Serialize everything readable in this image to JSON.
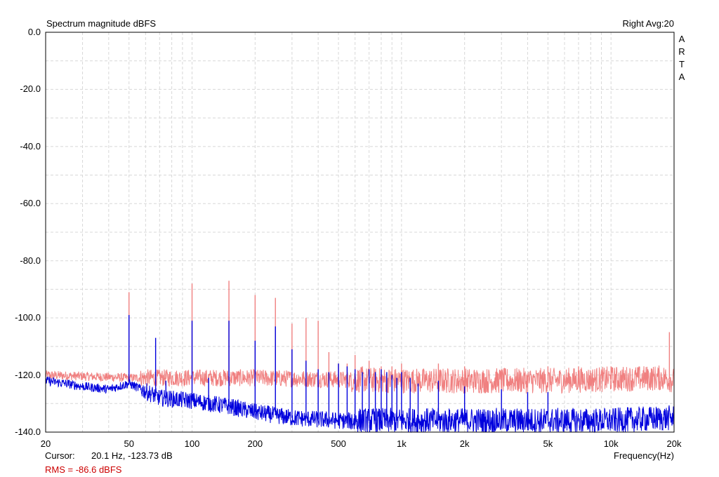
{
  "header": {
    "title": "Spectrum magnitude dBFS",
    "channel_info": "Right  Avg:20",
    "brand_letters": [
      "A",
      "R",
      "T",
      "A"
    ]
  },
  "footer": {
    "cursor_label": "Cursor:",
    "cursor_value": "20.1 Hz, -123.73 dB",
    "rms_text": "RMS =  -86.6 dBFS",
    "rms_color": "#cc0000",
    "frequency_label": "Frequency(Hz)"
  },
  "chart_data": {
    "type": "line",
    "title": "Spectrum magnitude dBFS",
    "xlabel": "Frequency(Hz)",
    "ylabel": "",
    "x_scale": "log",
    "xlim": [
      20,
      20000
    ],
    "ylim": [
      -140,
      0
    ],
    "grid": true,
    "x_tick_values": [
      20,
      50,
      100,
      200,
      500,
      1000,
      2000,
      5000,
      10000,
      20000
    ],
    "x_tick_labels": [
      "20",
      "50",
      "100",
      "200",
      "500",
      "1k",
      "2k",
      "5k",
      "10k",
      "20k"
    ],
    "y_tick_values": [
      0,
      -20,
      -40,
      -60,
      -80,
      -100,
      -120,
      -140
    ],
    "y_tick_labels": [
      "0.0",
      "-20.0",
      "-40.0",
      "-60.0",
      "-80.0",
      "-100.0",
      "-120.0",
      "-140.0"
    ],
    "series": [
      {
        "color": "#f08080",
        "noise_floor": [
          [
            20,
            -120
          ],
          [
            50,
            -121
          ],
          [
            200,
            -121
          ],
          [
            1000,
            -122
          ],
          [
            5000,
            -122
          ],
          [
            18000,
            -121
          ],
          [
            20000,
            -122
          ]
        ],
        "peaks": [
          [
            50,
            -91
          ],
          [
            100,
            -88
          ],
          [
            150,
            -87
          ],
          [
            200,
            -92
          ],
          [
            250,
            -93
          ],
          [
            300,
            -102
          ],
          [
            350,
            -100
          ],
          [
            400,
            -101
          ],
          [
            450,
            -112
          ],
          [
            500,
            -116
          ],
          [
            550,
            -116
          ],
          [
            600,
            -113
          ],
          [
            650,
            -117
          ],
          [
            700,
            -115
          ],
          [
            800,
            -117
          ],
          [
            900,
            -117
          ],
          [
            1000,
            -116
          ],
          [
            1500,
            -116
          ],
          [
            2000,
            -117
          ],
          [
            3000,
            -118
          ],
          [
            5000,
            -117
          ],
          [
            7000,
            -117
          ],
          [
            10000,
            -117
          ],
          [
            15000,
            -118
          ],
          [
            19000,
            -105
          ]
        ]
      },
      {
        "color": "#0000dd",
        "noise_floor": [
          [
            20,
            -122
          ],
          [
            25,
            -123
          ],
          [
            30,
            -124
          ],
          [
            40,
            -125
          ],
          [
            50,
            -123
          ],
          [
            70,
            -128
          ],
          [
            100,
            -129
          ],
          [
            150,
            -131
          ],
          [
            200,
            -133
          ],
          [
            300,
            -135
          ],
          [
            500,
            -136
          ],
          [
            1000,
            -136
          ],
          [
            2000,
            -136
          ],
          [
            5000,
            -136
          ],
          [
            10000,
            -136
          ],
          [
            20000,
            -135
          ]
        ],
        "peaks": [
          [
            50,
            -99
          ],
          [
            67,
            -107
          ],
          [
            75,
            -122
          ],
          [
            100,
            -101
          ],
          [
            120,
            -121
          ],
          [
            150,
            -101
          ],
          [
            200,
            -108
          ],
          [
            250,
            -103
          ],
          [
            300,
            -111
          ],
          [
            350,
            -115
          ],
          [
            400,
            -118
          ],
          [
            450,
            -119
          ],
          [
            500,
            -116
          ],
          [
            550,
            -117
          ],
          [
            600,
            -118
          ],
          [
            650,
            -119
          ],
          [
            700,
            -118
          ],
          [
            750,
            -119
          ],
          [
            800,
            -118
          ],
          [
            850,
            -119
          ],
          [
            900,
            -120
          ],
          [
            950,
            -121
          ],
          [
            1000,
            -119
          ],
          [
            1100,
            -121
          ],
          [
            1200,
            -123
          ],
          [
            1500,
            -122
          ],
          [
            2000,
            -124
          ],
          [
            3000,
            -125
          ],
          [
            4000,
            -126
          ],
          [
            5000,
            -126
          ]
        ]
      }
    ]
  }
}
